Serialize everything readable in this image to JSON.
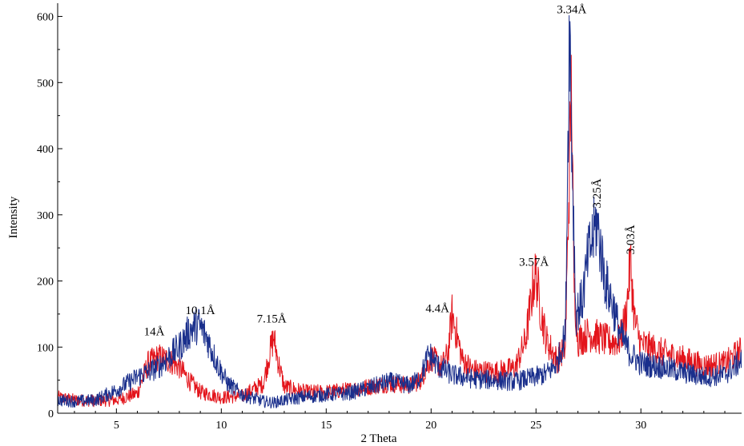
{
  "chart_data": {
    "type": "line",
    "title": "",
    "xlabel": "2 Theta",
    "ylabel": "Intensity",
    "xlim": [
      2.2,
      34.8
    ],
    "ylim": [
      0,
      620
    ],
    "x_ticks": [
      5,
      10,
      15,
      20,
      25,
      30
    ],
    "x_tick_labels": [
      "5",
      "10",
      "15",
      "20",
      "25",
      "30"
    ],
    "y_ticks": [
      0,
      100,
      200,
      300,
      400,
      500,
      600
    ],
    "y_tick_labels": [
      "0",
      "100",
      "200",
      "300",
      "400",
      "500",
      "600"
    ],
    "grid": false,
    "legend": "none",
    "series": [
      {
        "color": "#e3141b",
        "x": [
          2.2,
          3.0,
          4.0,
          5.0,
          6.0,
          6.5,
          7.0,
          7.5,
          8.0,
          8.5,
          9.0,
          10.0,
          11.0,
          12.0,
          12.3,
          12.5,
          12.7,
          13.0,
          14.0,
          15.0,
          16.0,
          17.0,
          18.0,
          19.0,
          19.5,
          20.0,
          20.5,
          20.8,
          21.0,
          21.5,
          22.0,
          23.0,
          24.0,
          24.5,
          24.9,
          25.0,
          25.2,
          25.5,
          26.0,
          26.4,
          26.6,
          26.7,
          26.8,
          27.0,
          27.5,
          28.0,
          28.5,
          29.0,
          29.3,
          29.5,
          29.7,
          30.0,
          31.0,
          32.0,
          33.0,
          34.0,
          34.8
        ],
        "y": [
          24,
          20,
          19,
          20,
          30,
          75,
          85,
          80,
          70,
          48,
          32,
          24,
          26,
          45,
          90,
          115,
          80,
          40,
          32,
          32,
          35,
          40,
          45,
          42,
          50,
          85,
          70,
          90,
          150,
          80,
          65,
          62,
          68,
          110,
          200,
          210,
          160,
          110,
          80,
          100,
          380,
          505,
          200,
          110,
          120,
          115,
          108,
          110,
          150,
          230,
          140,
          105,
          92,
          82,
          72,
          75,
          95
        ]
      },
      {
        "color": "#1a2f8c",
        "x": [
          2.2,
          3.0,
          4.0,
          5.0,
          6.0,
          7.0,
          7.5,
          8.0,
          8.5,
          8.9,
          9.3,
          9.8,
          10.3,
          11.0,
          12.0,
          12.5,
          13.0,
          14.0,
          15.0,
          16.0,
          17.0,
          18.0,
          19.0,
          19.5,
          19.9,
          20.3,
          21.0,
          22.0,
          23.0,
          24.0,
          25.0,
          25.5,
          26.0,
          26.4,
          26.6,
          26.7,
          26.9,
          27.2,
          27.5,
          27.9,
          28.3,
          28.7,
          29.0,
          29.5,
          30.0,
          31.0,
          32.0,
          33.0,
          34.0,
          34.8
        ],
        "y": [
          20,
          18,
          20,
          35,
          55,
          70,
          85,
          100,
          125,
          135,
          115,
          75,
          45,
          28,
          18,
          16,
          20,
          25,
          28,
          30,
          38,
          48,
          42,
          55,
          90,
          72,
          58,
          52,
          50,
          48,
          55,
          60,
          75,
          120,
          600,
          420,
          150,
          170,
          240,
          290,
          200,
          160,
          120,
          90,
          75,
          70,
          62,
          55,
          58,
          80
        ]
      }
    ],
    "annotations": [
      {
        "text": "14Å",
        "x": 6.8,
        "y": 118
      },
      {
        "text": "10.1Å",
        "x": 9.0,
        "y": 150
      },
      {
        "text": "7.15Å",
        "x": 12.4,
        "y": 137
      },
      {
        "text": "4.4Å",
        "x": 20.3,
        "y": 153
      },
      {
        "text": "3.57Å",
        "x": 24.9,
        "y": 223
      },
      {
        "text": "3.34Å",
        "x": 26.7,
        "y": 605
      },
      {
        "text": "3.25Å",
        "x": 27.9,
        "y": 310,
        "rotate": true
      },
      {
        "text": "3.03Å",
        "x": 29.5,
        "y": 240,
        "rotate": true
      }
    ]
  }
}
